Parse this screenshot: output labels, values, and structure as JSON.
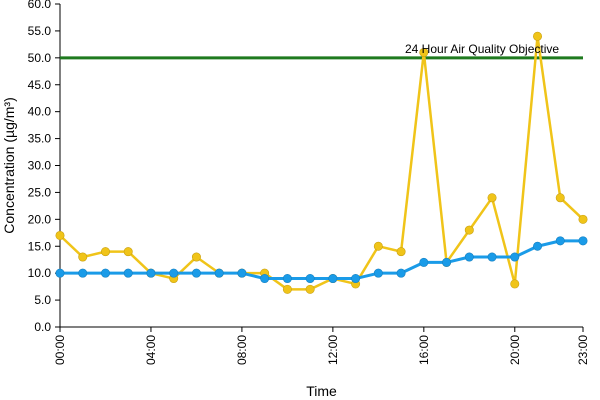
{
  "chart_data": {
    "type": "line",
    "xlabel": "Time",
    "ylabel": "Concentration (µg/m³)",
    "ylim": [
      0,
      60
    ],
    "yticks": [
      "0.0",
      "5.0",
      "10.0",
      "15.0",
      "20.0",
      "25.0",
      "30.0",
      "35.0",
      "40.0",
      "45.0",
      "50.0",
      "55.0",
      "60.0"
    ],
    "xticks": [
      "00:00",
      "04:00",
      "08:00",
      "12:00",
      "16:00",
      "20:00",
      "23:00"
    ],
    "xtick_hours": [
      0,
      4,
      8,
      12,
      16,
      20,
      23
    ],
    "x": [
      0,
      1,
      2,
      3,
      4,
      5,
      6,
      7,
      8,
      9,
      10,
      11,
      12,
      13,
      14,
      15,
      16,
      17,
      18,
      19,
      20,
      21,
      22,
      23
    ],
    "grid": false,
    "series": [
      {
        "color": "#f0c419",
        "values": [
          17,
          13,
          14,
          14,
          10,
          9,
          13,
          10,
          10,
          10,
          7,
          7,
          9,
          8,
          15,
          14,
          51,
          12,
          18,
          24,
          8,
          54,
          24,
          20
        ]
      },
      {
        "color": "#1a9be8",
        "values": [
          10,
          10,
          10,
          10,
          10,
          10,
          10,
          10,
          10,
          9,
          9,
          9,
          9,
          9,
          10,
          10,
          12,
          12,
          13,
          13,
          13,
          15,
          16,
          16
        ]
      }
    ],
    "reference_line": {
      "value": 50,
      "label": "24 Hour Air Quality Objective",
      "color": "#1f7a1f"
    }
  }
}
